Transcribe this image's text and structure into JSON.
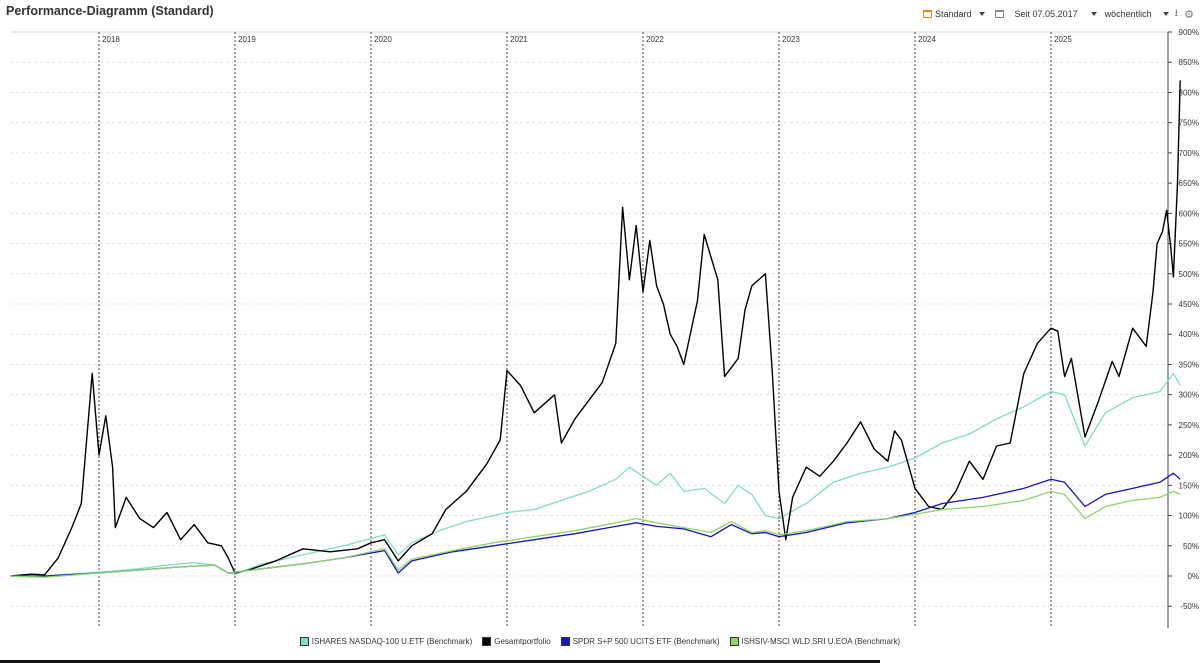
{
  "title": "Performance-Diagramm (Standard)",
  "toolbar": {
    "preset_label": "Standard",
    "since_label": "Seit 07.05.2017",
    "interval_label": "wöchentlich",
    "icons": [
      "calendar-icon",
      "chevron-down-icon",
      "calendar-icon",
      "chevron-down-icon",
      "chevron-down-icon",
      "download-icon",
      "gear-icon"
    ]
  },
  "chart_data": {
    "type": "line",
    "xlim": [
      2017.35,
      2025.95
    ],
    "ylim": [
      -60,
      900
    ],
    "y_ticks": [
      900,
      850,
      800,
      750,
      700,
      650,
      600,
      550,
      500,
      450,
      400,
      350,
      300,
      250,
      200,
      150,
      100,
      50,
      0,
      -50
    ],
    "y_tick_suffix": "%",
    "x_ticks": [
      {
        "x": 2018.0,
        "label": "2018"
      },
      {
        "x": 2019.0,
        "label": "2019"
      },
      {
        "x": 2020.0,
        "label": "2020"
      },
      {
        "x": 2021.0,
        "label": "2021"
      },
      {
        "x": 2022.0,
        "label": "2022"
      },
      {
        "x": 2023.0,
        "label": "2023"
      },
      {
        "x": 2024.0,
        "label": "2024"
      },
      {
        "x": 2025.0,
        "label": "2025"
      }
    ],
    "grid": true,
    "legend_position": "bottom",
    "series": [
      {
        "name": "ISHARES NASDAQ-100 U.ETF (Benchmark)",
        "color": "#7fdcc7",
        "points": [
          [
            2017.35,
            0
          ],
          [
            2017.5,
            -2
          ],
          [
            2017.7,
            2
          ],
          [
            2017.9,
            5
          ],
          [
            2018.1,
            8
          ],
          [
            2018.3,
            12
          ],
          [
            2018.5,
            18
          ],
          [
            2018.7,
            22
          ],
          [
            2018.85,
            18
          ],
          [
            2018.95,
            5
          ],
          [
            2019.0,
            3
          ],
          [
            2019.2,
            20
          ],
          [
            2019.4,
            30
          ],
          [
            2019.6,
            40
          ],
          [
            2019.8,
            50
          ],
          [
            2020.0,
            62
          ],
          [
            2020.1,
            68
          ],
          [
            2020.2,
            35
          ],
          [
            2020.3,
            55
          ],
          [
            2020.5,
            75
          ],
          [
            2020.7,
            90
          ],
          [
            2020.9,
            100
          ],
          [
            2021.0,
            105
          ],
          [
            2021.2,
            110
          ],
          [
            2021.4,
            125
          ],
          [
            2021.6,
            140
          ],
          [
            2021.8,
            160
          ],
          [
            2021.9,
            180
          ],
          [
            2022.0,
            165
          ],
          [
            2022.1,
            150
          ],
          [
            2022.2,
            170
          ],
          [
            2022.3,
            140
          ],
          [
            2022.45,
            145
          ],
          [
            2022.6,
            120
          ],
          [
            2022.7,
            150
          ],
          [
            2022.8,
            135
          ],
          [
            2022.9,
            100
          ],
          [
            2023.0,
            95
          ],
          [
            2023.2,
            120
          ],
          [
            2023.4,
            155
          ],
          [
            2023.6,
            170
          ],
          [
            2023.8,
            180
          ],
          [
            2024.0,
            195
          ],
          [
            2024.2,
            220
          ],
          [
            2024.4,
            235
          ],
          [
            2024.6,
            260
          ],
          [
            2024.8,
            280
          ],
          [
            2025.0,
            305
          ],
          [
            2025.1,
            300
          ],
          [
            2025.25,
            215
          ],
          [
            2025.4,
            270
          ],
          [
            2025.6,
            295
          ],
          [
            2025.8,
            305
          ],
          [
            2025.9,
            335
          ],
          [
            2025.95,
            315
          ]
        ]
      },
      {
        "name": "Gesamtportfolio",
        "color": "#000000",
        "points": [
          [
            2017.35,
            0
          ],
          [
            2017.5,
            3
          ],
          [
            2017.6,
            2
          ],
          [
            2017.7,
            30
          ],
          [
            2017.8,
            80
          ],
          [
            2017.87,
            120
          ],
          [
            2017.95,
            335
          ],
          [
            2018.0,
            200
          ],
          [
            2018.05,
            265
          ],
          [
            2018.1,
            180
          ],
          [
            2018.12,
            80
          ],
          [
            2018.2,
            130
          ],
          [
            2018.3,
            95
          ],
          [
            2018.4,
            80
          ],
          [
            2018.5,
            105
          ],
          [
            2018.6,
            60
          ],
          [
            2018.7,
            85
          ],
          [
            2018.8,
            55
          ],
          [
            2018.9,
            50
          ],
          [
            2018.95,
            30
          ],
          [
            2019.0,
            5
          ],
          [
            2019.1,
            10
          ],
          [
            2019.3,
            25
          ],
          [
            2019.5,
            45
          ],
          [
            2019.7,
            40
          ],
          [
            2019.9,
            45
          ],
          [
            2020.0,
            55
          ],
          [
            2020.1,
            60
          ],
          [
            2020.2,
            25
          ],
          [
            2020.3,
            50
          ],
          [
            2020.45,
            70
          ],
          [
            2020.55,
            110
          ],
          [
            2020.7,
            140
          ],
          [
            2020.85,
            185
          ],
          [
            2020.95,
            225
          ],
          [
            2021.0,
            340
          ],
          [
            2021.1,
            315
          ],
          [
            2021.2,
            270
          ],
          [
            2021.35,
            300
          ],
          [
            2021.4,
            220
          ],
          [
            2021.5,
            260
          ],
          [
            2021.6,
            290
          ],
          [
            2021.7,
            320
          ],
          [
            2021.8,
            385
          ],
          [
            2021.85,
            610
          ],
          [
            2021.9,
            490
          ],
          [
            2021.95,
            580
          ],
          [
            2022.0,
            470
          ],
          [
            2022.05,
            555
          ],
          [
            2022.1,
            480
          ],
          [
            2022.15,
            450
          ],
          [
            2022.2,
            400
          ],
          [
            2022.25,
            380
          ],
          [
            2022.3,
            350
          ],
          [
            2022.4,
            455
          ],
          [
            2022.45,
            565
          ],
          [
            2022.55,
            490
          ],
          [
            2022.6,
            330
          ],
          [
            2022.7,
            360
          ],
          [
            2022.75,
            440
          ],
          [
            2022.8,
            480
          ],
          [
            2022.9,
            500
          ],
          [
            2022.95,
            340
          ],
          [
            2023.0,
            140
          ],
          [
            2023.05,
            60
          ],
          [
            2023.1,
            130
          ],
          [
            2023.2,
            180
          ],
          [
            2023.3,
            165
          ],
          [
            2023.4,
            190
          ],
          [
            2023.5,
            220
          ],
          [
            2023.6,
            255
          ],
          [
            2023.7,
            210
          ],
          [
            2023.8,
            190
          ],
          [
            2023.85,
            240
          ],
          [
            2023.9,
            225
          ],
          [
            2024.0,
            145
          ],
          [
            2024.1,
            115
          ],
          [
            2024.2,
            110
          ],
          [
            2024.3,
            140
          ],
          [
            2024.4,
            190
          ],
          [
            2024.5,
            160
          ],
          [
            2024.6,
            215
          ],
          [
            2024.7,
            220
          ],
          [
            2024.8,
            335
          ],
          [
            2024.9,
            385
          ],
          [
            2025.0,
            410
          ],
          [
            2025.05,
            405
          ],
          [
            2025.1,
            330
          ],
          [
            2025.15,
            360
          ],
          [
            2025.25,
            230
          ],
          [
            2025.35,
            290
          ],
          [
            2025.45,
            355
          ],
          [
            2025.5,
            330
          ],
          [
            2025.6,
            410
          ],
          [
            2025.7,
            380
          ],
          [
            2025.75,
            470
          ],
          [
            2025.78,
            550
          ],
          [
            2025.82,
            570
          ],
          [
            2025.85,
            605
          ],
          [
            2025.88,
            545
          ],
          [
            2025.9,
            495
          ],
          [
            2025.93,
            650
          ],
          [
            2025.95,
            820
          ]
        ]
      },
      {
        "name": "SPDR S+P 500 UCITS ETF (Benchmark)",
        "color": "#1414c8",
        "points": [
          [
            2017.35,
            0
          ],
          [
            2017.6,
            0
          ],
          [
            2018.0,
            5
          ],
          [
            2018.3,
            10
          ],
          [
            2018.6,
            15
          ],
          [
            2018.85,
            18
          ],
          [
            2018.95,
            5
          ],
          [
            2019.2,
            12
          ],
          [
            2019.5,
            20
          ],
          [
            2019.8,
            30
          ],
          [
            2020.0,
            38
          ],
          [
            2020.1,
            42
          ],
          [
            2020.2,
            5
          ],
          [
            2020.3,
            25
          ],
          [
            2020.6,
            40
          ],
          [
            2020.9,
            50
          ],
          [
            2021.2,
            60
          ],
          [
            2021.5,
            70
          ],
          [
            2021.8,
            82
          ],
          [
            2021.95,
            88
          ],
          [
            2022.1,
            82
          ],
          [
            2022.3,
            78
          ],
          [
            2022.5,
            65
          ],
          [
            2022.65,
            85
          ],
          [
            2022.8,
            70
          ],
          [
            2022.9,
            72
          ],
          [
            2023.0,
            65
          ],
          [
            2023.2,
            72
          ],
          [
            2023.5,
            88
          ],
          [
            2023.8,
            95
          ],
          [
            2024.0,
            105
          ],
          [
            2024.2,
            120
          ],
          [
            2024.5,
            130
          ],
          [
            2024.8,
            145
          ],
          [
            2025.0,
            160
          ],
          [
            2025.1,
            155
          ],
          [
            2025.25,
            115
          ],
          [
            2025.4,
            135
          ],
          [
            2025.6,
            145
          ],
          [
            2025.8,
            155
          ],
          [
            2025.9,
            170
          ],
          [
            2025.95,
            160
          ]
        ]
      },
      {
        "name": "ISHSIV-MSCI WLD.SRI U.EOA (Benchmark)",
        "color": "#8fd46a",
        "points": [
          [
            2017.35,
            0
          ],
          [
            2017.6,
            -2
          ],
          [
            2018.0,
            5
          ],
          [
            2018.3,
            10
          ],
          [
            2018.6,
            15
          ],
          [
            2018.85,
            18
          ],
          [
            2018.95,
            5
          ],
          [
            2019.2,
            12
          ],
          [
            2019.5,
            20
          ],
          [
            2019.8,
            30
          ],
          [
            2020.0,
            40
          ],
          [
            2020.1,
            45
          ],
          [
            2020.2,
            10
          ],
          [
            2020.3,
            28
          ],
          [
            2020.6,
            42
          ],
          [
            2020.9,
            55
          ],
          [
            2021.2,
            65
          ],
          [
            2021.5,
            75
          ],
          [
            2021.8,
            88
          ],
          [
            2021.95,
            95
          ],
          [
            2022.1,
            88
          ],
          [
            2022.3,
            80
          ],
          [
            2022.5,
            72
          ],
          [
            2022.65,
            90
          ],
          [
            2022.8,
            72
          ],
          [
            2022.9,
            75
          ],
          [
            2023.0,
            68
          ],
          [
            2023.2,
            75
          ],
          [
            2023.5,
            90
          ],
          [
            2023.8,
            95
          ],
          [
            2024.0,
            102
          ],
          [
            2024.2,
            110
          ],
          [
            2024.5,
            115
          ],
          [
            2024.8,
            125
          ],
          [
            2025.0,
            140
          ],
          [
            2025.1,
            135
          ],
          [
            2025.25,
            95
          ],
          [
            2025.4,
            115
          ],
          [
            2025.6,
            125
          ],
          [
            2025.8,
            130
          ],
          [
            2025.9,
            140
          ],
          [
            2025.95,
            135
          ]
        ]
      }
    ]
  }
}
